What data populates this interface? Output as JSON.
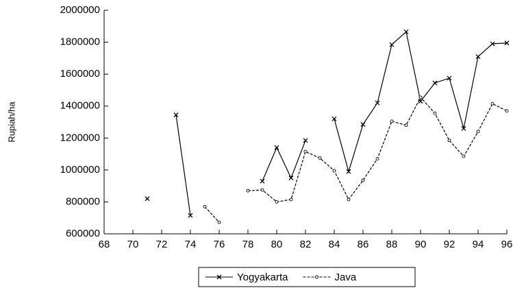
{
  "chart_data": {
    "type": "line",
    "y_label": "Rupiah/ha",
    "x": [
      71,
      72,
      73,
      74,
      75,
      76,
      77,
      78,
      79,
      80,
      81,
      82,
      83,
      84,
      85,
      86,
      87,
      88,
      89,
      90,
      91,
      92,
      93,
      94,
      95,
      96
    ],
    "series": [
      {
        "name": "Yogyakarta",
        "color": "#000000",
        "marker": "x",
        "dash": false,
        "values": [
          820000,
          null,
          1345000,
          715000,
          null,
          null,
          null,
          null,
          930000,
          1140000,
          950000,
          1185000,
          null,
          1320000,
          990000,
          1285000,
          1420000,
          1785000,
          1865000,
          1430000,
          1545000,
          1575000,
          1260000,
          1710000,
          1790000,
          1795000
        ]
      },
      {
        "name": "Java",
        "color": "#000000",
        "marker": "circle",
        "dash": true,
        "values": [
          null,
          null,
          null,
          null,
          770000,
          672000,
          null,
          870000,
          875000,
          800000,
          815000,
          1115000,
          1075000,
          995000,
          815000,
          935000,
          1070000,
          1305000,
          1280000,
          1455000,
          1355000,
          1185000,
          1085000,
          1240000,
          1415000,
          1370000
        ]
      }
    ],
    "xlim": [
      68,
      96
    ],
    "xticks": [
      68,
      70,
      72,
      74,
      76,
      78,
      80,
      82,
      84,
      86,
      88,
      90,
      92,
      94,
      96
    ],
    "ylim": [
      600000,
      2000000
    ],
    "yticks": [
      600000,
      800000,
      1000000,
      1200000,
      1400000,
      1600000,
      1800000,
      2000000
    ],
    "grid": false,
    "legend": "bottom"
  }
}
